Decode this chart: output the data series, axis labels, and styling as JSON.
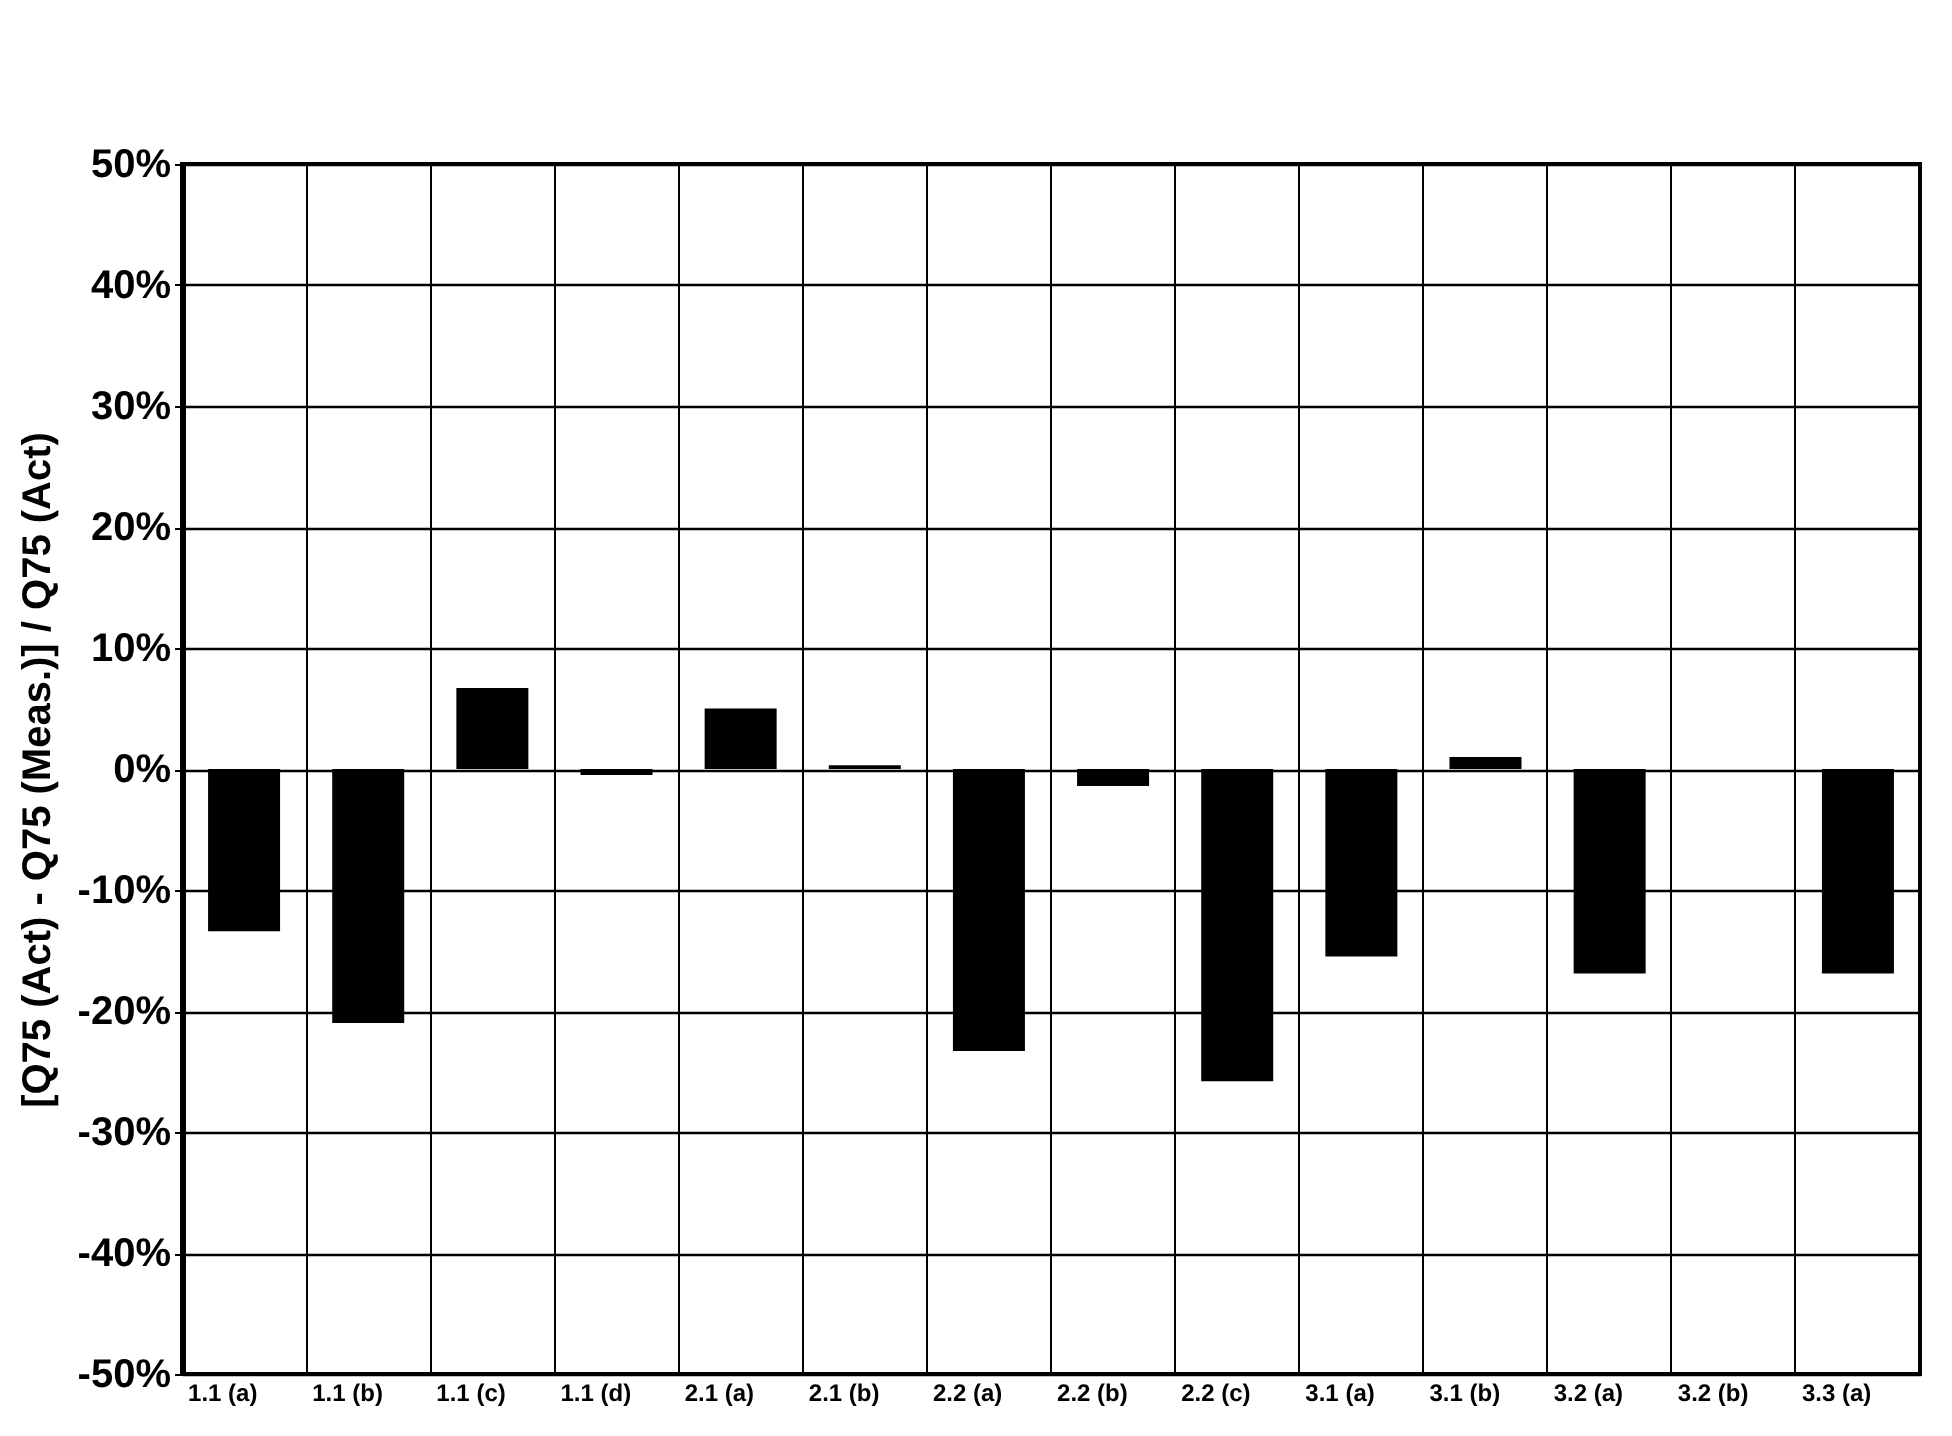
{
  "chart_data": {
    "type": "bar",
    "ylabel": "[Q75 (Act) - Q75 (Meas.)] / Q75 (Act)",
    "categories": [
      "1.1 (a)",
      "1.1 (b)",
      "1.1 (c)",
      "1.1 (d)",
      "2.1 (a)",
      "2.1 (b)",
      "2.2 (a)",
      "2.2 (b)",
      "2.2 (c)",
      "3.1 (a)",
      "3.1 (b)",
      "3.2 (a)",
      "3.2 (b)",
      "3.3 (a)"
    ],
    "values": [
      -13.4,
      -21,
      6.7,
      -0.5,
      5,
      0.3,
      -23.3,
      -1.4,
      -25.8,
      -15.5,
      1,
      -16.9,
      0,
      -16.9
    ],
    "color": "#000000",
    "ylim": [
      -50,
      50
    ],
    "yticks": [
      {
        "value": -50,
        "label": "-50%"
      },
      {
        "value": -40,
        "label": "-40%"
      },
      {
        "value": -30,
        "label": "-30%"
      },
      {
        "value": -20,
        "label": "-20%"
      },
      {
        "value": -10,
        "label": "-10%"
      },
      {
        "value": 0,
        "label": "0%"
      },
      {
        "value": 10,
        "label": "10%"
      },
      {
        "value": 20,
        "label": "20%"
      },
      {
        "value": 30,
        "label": "30%"
      },
      {
        "value": 40,
        "label": "40%"
      },
      {
        "value": 50,
        "label": "50%"
      }
    ],
    "grid": true
  }
}
